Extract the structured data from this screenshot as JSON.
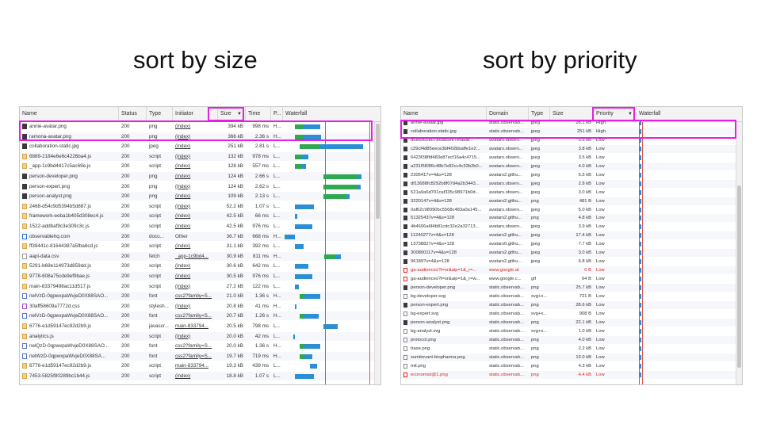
{
  "headings": {
    "left": "sort by size",
    "right": "sort by priority"
  },
  "colors": {
    "highlight": "#e61ee6",
    "waiting": "#2fa84f",
    "download": "#2c8fd6",
    "blue_line": "#3f7be0",
    "red_line": "#e05555"
  },
  "left_panel": {
    "columns": [
      "Name",
      "Status",
      "Type",
      "Initiator",
      "Size",
      "Time",
      "P...",
      "Waterfall"
    ],
    "sort_indicator": "▼",
    "rows": [
      {
        "icon": "img",
        "name": "annie-avatar.png",
        "status": "200",
        "type": "png",
        "initiator": "(index)",
        "size": "394 kB",
        "time": "998 ms",
        "p": "H...",
        "wf": [
          0.12,
          0.22,
          0.42
        ]
      },
      {
        "icon": "img",
        "name": "ramona-avatar.png",
        "status": "200",
        "type": "png",
        "initiator": "(index)",
        "size": "366 kB",
        "time": "2.36 s",
        "p": "H...",
        "wf": [
          0.12,
          0.22,
          0.43
        ]
      },
      {
        "icon": "img",
        "name": "collaboration-static.jpg",
        "status": "200",
        "type": "jpeg",
        "initiator": "(index)",
        "size": "251 kB",
        "time": "2.81 s",
        "p": "L...",
        "wf": [
          0.18,
          0.42,
          0.92
        ]
      },
      {
        "icon": "script",
        "name": "6889-2184e6e6c4226ba4.js",
        "status": "200",
        "type": "script",
        "initiator": "(index)",
        "size": "132 kB",
        "time": "978 ms",
        "p": "L...",
        "wf": [
          0.12,
          0.2,
          0.28
        ]
      },
      {
        "icon": "script",
        "name": "_app-1c9bd4417c5ac69e.js",
        "status": "200",
        "type": "script",
        "initiator": "(index)",
        "size": "128 kB",
        "time": "557 ms",
        "p": "L...",
        "wf": [
          0.12,
          0.2,
          0.25
        ]
      },
      {
        "icon": "img",
        "name": "person-developer.png",
        "status": "200",
        "type": "png",
        "initiator": "(index)",
        "size": "124 kB",
        "time": "2.66 s",
        "p": "L...",
        "wf": [
          0.45,
          0.86,
          0.9
        ]
      },
      {
        "icon": "img",
        "name": "person-expert.png",
        "status": "200",
        "type": "png",
        "initiator": "(index)",
        "size": "124 kB",
        "time": "2.62 s",
        "p": "L...",
        "wf": [
          0.45,
          0.84,
          0.89
        ]
      },
      {
        "icon": "img",
        "name": "person-analyst.png",
        "status": "200",
        "type": "png",
        "initiator": "(index)",
        "size": "109 kB",
        "time": "2.13 s",
        "p": "L...",
        "wf": [
          0.45,
          0.72,
          0.76
        ]
      },
      {
        "icon": "script",
        "name": "2468-d54c9d5394b5d887.js",
        "status": "200",
        "type": "script",
        "initiator": "(index)",
        "size": "52.2 kB",
        "time": "1.07 s",
        "p": "L...",
        "wf": [
          0.12,
          0.12,
          0.34
        ]
      },
      {
        "icon": "script",
        "name": "framework-eeba1b405d308ec4.js",
        "status": "200",
        "type": "script",
        "initiator": "(index)",
        "size": "42.5 kB",
        "time": "66 ms",
        "p": "L...",
        "wf": [
          0.12,
          0.12,
          0.15
        ]
      },
      {
        "icon": "script",
        "name": "1522-addbaf9c3e309c3c.js",
        "status": "200",
        "type": "script",
        "initiator": "(index)",
        "size": "42.5 kB",
        "time": "976 ms",
        "p": "L...",
        "wf": [
          0.12,
          0.12,
          0.32
        ]
      },
      {
        "icon": "doc",
        "name": "observablehq.com",
        "status": "200",
        "type": "docu...",
        "initiator": "Other",
        "size": "36.7 kB",
        "time": "668 ms",
        "p": "H...",
        "wf": [
          0.0,
          0.02,
          0.12
        ]
      },
      {
        "icon": "script",
        "name": "ff39441c-81644387a5fba8cd.js",
        "status": "200",
        "type": "script",
        "initiator": "(index)",
        "size": "31.1 kB",
        "time": "392 ms",
        "p": "L...",
        "wf": [
          0.12,
          0.12,
          0.22
        ]
      },
      {
        "icon": "fetch",
        "name": "aapl-data.csv",
        "status": "200",
        "type": "fetch",
        "initiator": "_app-1c9bd4...",
        "size": "30.9 kB",
        "time": "811 ms",
        "p": "H...",
        "wf": [
          0.46,
          0.6,
          0.66
        ]
      },
      {
        "icon": "script",
        "name": "5291-b69e114973d859dd.js",
        "status": "200",
        "type": "script",
        "initiator": "(index)",
        "size": "30.6 kB",
        "time": "642 ms",
        "p": "L...",
        "wf": [
          0.12,
          0.12,
          0.28
        ]
      },
      {
        "icon": "script",
        "name": "9778-608a75cde9ef9bae.js",
        "status": "200",
        "type": "script",
        "initiator": "(index)",
        "size": "30.5 kB",
        "time": "976 ms",
        "p": "L...",
        "wf": [
          0.12,
          0.12,
          0.32
        ]
      },
      {
        "icon": "script",
        "name": "main-83379498ac11d517.js",
        "status": "200",
        "type": "script",
        "initiator": "(index)",
        "size": "27.2 kB",
        "time": "122 ms",
        "p": "L...",
        "wf": [
          0.12,
          0.12,
          0.17
        ]
      },
      {
        "icon": "font",
        "name": "nelVzD-0qpwxpaWvjeD0X88SAO...",
        "status": "200",
        "type": "font",
        "initiator": "css2?family=S...",
        "size": "21.0 kB",
        "time": "1.36 s",
        "p": "H...",
        "wf": [
          0.18,
          0.23,
          0.42
        ]
      },
      {
        "icon": "style",
        "name": "30aff58609a7772d.css",
        "status": "200",
        "type": "stylesh...",
        "initiator": "(index)",
        "size": "20.8 kB",
        "time": "41 ms",
        "p": "H...",
        "wf": [
          0.12,
          0.12,
          0.14
        ]
      },
      {
        "icon": "font",
        "name": "nelVzD-0qpwxpaWvjeD0X88SAO...",
        "status": "200",
        "type": "font",
        "initiator": "css2?family=S...",
        "size": "20.7 kB",
        "time": "1.26 s",
        "p": "H...",
        "wf": [
          0.18,
          0.23,
          0.4
        ]
      },
      {
        "icon": "script",
        "name": "6776-e1d59147ec92d2b9.js",
        "status": "200",
        "type": "javascr...",
        "initiator": "main-833794...",
        "size": "20.5 kB",
        "time": "798 ms",
        "p": "L...",
        "wf": [
          0.45,
          0.46,
          0.62
        ]
      },
      {
        "icon": "script",
        "name": "analytics.js",
        "status": "200",
        "type": "script",
        "initiator": "(index)",
        "size": "20.0 kB",
        "time": "42 ms",
        "p": "L...",
        "wf": [
          0.1,
          0.1,
          0.12
        ]
      },
      {
        "icon": "font",
        "name": "nelQzD-0qpwxpaWvjeD0X88SAO...",
        "status": "200",
        "type": "font",
        "initiator": "css2?family=S...",
        "size": "20.0 kB",
        "time": "1.36 s",
        "p": "H...",
        "wf": [
          0.18,
          0.23,
          0.42
        ]
      },
      {
        "icon": "font",
        "name": "nelWzD-0qpwxpaWvjeD0X88SA...",
        "status": "200",
        "type": "font",
        "initiator": "css2?family=S...",
        "size": "19.7 kB",
        "time": "719 ms",
        "p": "H...",
        "wf": [
          0.18,
          0.23,
          0.32
        ]
      },
      {
        "icon": "script",
        "name": "6776-e1d59147ec92d2b9.js",
        "status": "200",
        "type": "script",
        "initiator": "main-833794...",
        "size": "19.3 kB",
        "time": "439 ms",
        "p": "L...",
        "wf": [
          0.3,
          0.3,
          0.38
        ]
      },
      {
        "icon": "script",
        "name": "7453-5825f80289bc1b44.js",
        "status": "200",
        "type": "script",
        "initiator": "(index)",
        "size": "18.8 kB",
        "time": "1.07 s",
        "p": "L...",
        "wf": [
          0.12,
          0.12,
          0.34
        ]
      }
    ]
  },
  "right_panel": {
    "columns": [
      "Name",
      "Domain",
      "Type",
      "Size",
      "Priority",
      "Waterfall"
    ],
    "sort_indicator": "▼",
    "rows": [
      {
        "icon": "img",
        "name": "annie-avatar.jpg",
        "domain": "static.observab...",
        "type": "jpeg",
        "size": "28.1 kB",
        "priority": "High",
        "red": false
      },
      {
        "icon": "img",
        "name": "collaboration-static.jpg",
        "domain": "static.observab...",
        "type": "jpeg",
        "size": "251 kB",
        "priority": "High",
        "red": false
      },
      {
        "icon": "img",
        "name": "d6e8966807a6da5ee7efa8at...",
        "domain": "avatars.observ...",
        "type": "jpeg",
        "size": "3.5 kB",
        "priority": "Low",
        "red": false
      },
      {
        "icon": "img",
        "name": "c29cf4d85eece3bf402bbaffe1e2...",
        "domain": "avatars.observ...",
        "type": "jpeg",
        "size": "3.8 kB",
        "priority": "Low",
        "red": false
      },
      {
        "icon": "img",
        "name": "6423f38fbf483e87ecf16a4c4715...",
        "domain": "avatars.observ...",
        "type": "jpeg",
        "size": "3.5 kB",
        "priority": "Low",
        "red": false
      },
      {
        "icon": "img",
        "name": "a231f583f6c48b7e82cc4c33b2b0...",
        "domain": "avatars.observ...",
        "type": "jpeg",
        "size": "4.0 kB",
        "priority": "Low",
        "red": false
      },
      {
        "icon": "img",
        "name": "2305417v=4&s=128",
        "domain": "avatars2.githu...",
        "type": "jpeg",
        "size": "5.5 kB",
        "priority": "Low",
        "red": false
      },
      {
        "icon": "img",
        "name": "df13688fc8292b8f07d4a2b3443...",
        "domain": "avatars.observ...",
        "type": "jpeg",
        "size": "2.8 kB",
        "priority": "Low",
        "red": false
      },
      {
        "icon": "img",
        "name": "521a9a6d701caf335c98971b0d...",
        "domain": "avatars.observ...",
        "type": "jpeg",
        "size": "3.0 kB",
        "priority": "Low",
        "red": false
      },
      {
        "icon": "img",
        "name": "3220147v=4&s=128",
        "domain": "avatars2.githu...",
        "type": "png",
        "size": "481 B",
        "priority": "Low",
        "red": false
      },
      {
        "icon": "img",
        "name": "0af62c98990bc5568c483a0a145...",
        "domain": "avatars.observ...",
        "type": "jpeg",
        "size": "5.0 kB",
        "priority": "Low",
        "red": false
      },
      {
        "icon": "img",
        "name": "51325437v=4&s=128",
        "domain": "avatars2.githu...",
        "type": "png",
        "size": "4.8 kB",
        "priority": "Low",
        "red": false
      },
      {
        "icon": "img",
        "name": "4b4606a6f4b81cdc32e2a32713...",
        "domain": "avatars.observ...",
        "type": "jpeg",
        "size": "3.9 kB",
        "priority": "Low",
        "red": false
      },
      {
        "icon": "img",
        "name": "11240277v=4&s=128",
        "domain": "avatars2.githu...",
        "type": "jpeg",
        "size": "17.4 kB",
        "priority": "Low",
        "red": false
      },
      {
        "icon": "img",
        "name": "13738827v=4&s=128",
        "domain": "avatars0.githu...",
        "type": "jpeg",
        "size": "7.7 kB",
        "priority": "Low",
        "red": false
      },
      {
        "icon": "img",
        "name": "300800117v=4&s=128",
        "domain": "avatars2.githu...",
        "type": "jpeg",
        "size": "3.0 kB",
        "priority": "Low",
        "red": false
      },
      {
        "icon": "img",
        "name": "96189?v=4&s=128",
        "domain": "avatars2.githu...",
        "type": "jpeg",
        "size": "6.8 kB",
        "priority": "Low",
        "red": false
      },
      {
        "icon": "gif",
        "name": "ga-audiences?t=sr&aip=1&_r=...",
        "domain": "www.google.at",
        "type": "",
        "size": "0 B",
        "priority": "Low",
        "red": true
      },
      {
        "icon": "gif",
        "name": "ga-audiences?t=sr&aip=1&_r=w...",
        "domain": "www.google.c...",
        "type": "gif",
        "size": "64 B",
        "priority": "Low",
        "red": false
      },
      {
        "icon": "img",
        "name": "person-developer.png",
        "domain": "static.observab...",
        "type": "png",
        "size": "25.7 kB",
        "priority": "Low",
        "red": false
      },
      {
        "icon": "svg",
        "name": "bg-developer.svg",
        "domain": "static.observab...",
        "type": "svg+x...",
        "size": "721 B",
        "priority": "Low",
        "red": false
      },
      {
        "icon": "img",
        "name": "person-expert.png",
        "domain": "static.observab...",
        "type": "png",
        "size": "28.6 kB",
        "priority": "Low",
        "red": false
      },
      {
        "icon": "svg",
        "name": "bg-expert.svg",
        "domain": "static.observab...",
        "type": "svg+x...",
        "size": "908 B",
        "priority": "Low",
        "red": false
      },
      {
        "icon": "img",
        "name": "person-analyst.png",
        "domain": "static.observab...",
        "type": "png",
        "size": "22.1 kB",
        "priority": "Low",
        "red": false
      },
      {
        "icon": "svg",
        "name": "bg-analyst.svg",
        "domain": "static.observab...",
        "type": "svg+x...",
        "size": "1.0 kB",
        "priority": "Low",
        "red": false
      },
      {
        "icon": "svg",
        "name": "protocol.png",
        "domain": "static.observab...",
        "type": "png",
        "size": "4.0 kB",
        "priority": "Low",
        "red": false
      },
      {
        "icon": "svg",
        "name": "trase.png",
        "domain": "static.observab...",
        "type": "png",
        "size": "2.2 kB",
        "priority": "Low",
        "red": false
      },
      {
        "icon": "svg",
        "name": "sumitovant-biopharma.png",
        "domain": "static.observab...",
        "type": "png",
        "size": "13.0 kB",
        "priority": "Low",
        "red": false
      },
      {
        "icon": "svg",
        "name": "mit.png",
        "domain": "static.observab...",
        "type": "png",
        "size": "4.3 kB",
        "priority": "Low",
        "red": false
      },
      {
        "icon": "gif",
        "name": "economist@1.png",
        "domain": "static.observab...",
        "type": "png",
        "size": "4.4 kB",
        "priority": "Low",
        "red": true
      }
    ]
  }
}
